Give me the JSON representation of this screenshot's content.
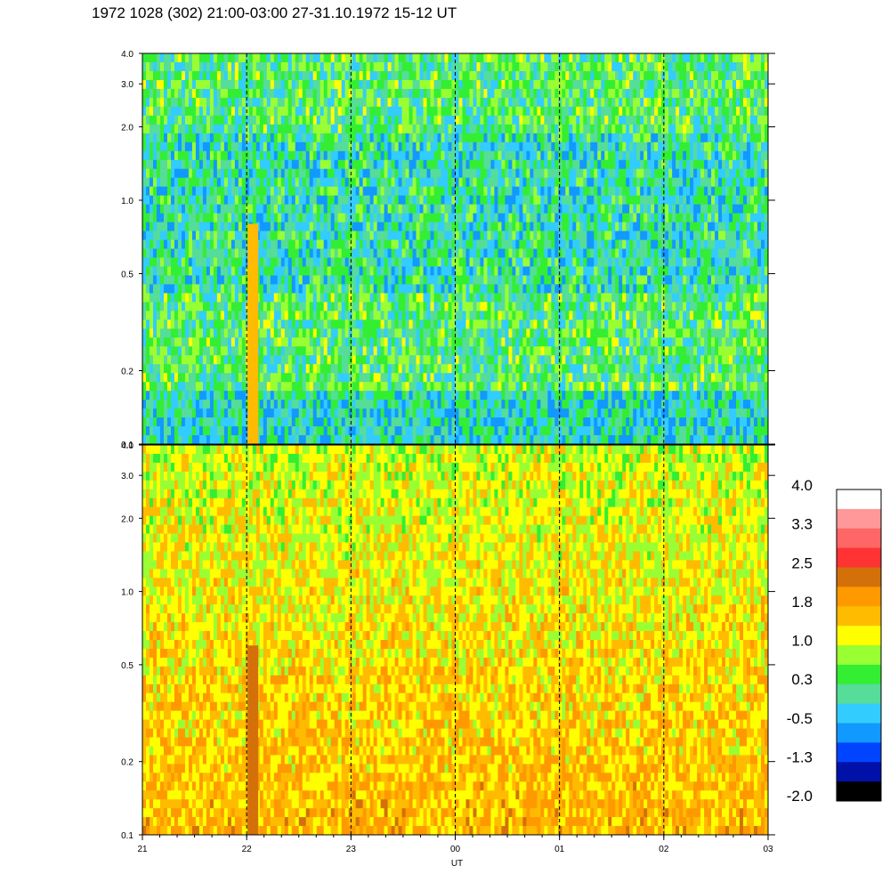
{
  "title": "1972 1028 (302) 21:00-03:00 27-31.10.1972  15-12 UT",
  "chart_data": [
    {
      "type": "heatmap",
      "panel": "upper",
      "xlabel": "",
      "ylabel": "",
      "x_range": [
        "21",
        "03"
      ],
      "y_ticks": [
        "0.1",
        "0.2",
        "0.5",
        "1.0",
        "2.0",
        "3.0",
        "4.0"
      ],
      "y_scale": "log",
      "ylim": [
        0.1,
        4.0
      ],
      "dashed_vertical_lines_at": [
        "22",
        "23",
        "00",
        "01",
        "02"
      ],
      "dominant_levels": [
        -0.5,
        0.3,
        1.0
      ],
      "highlight": {
        "x": "22",
        "level": 1.8,
        "y_range": [
          0.1,
          0.8
        ]
      }
    },
    {
      "type": "heatmap",
      "panel": "lower",
      "xlabel": "UT",
      "ylabel": "",
      "x_ticks": [
        "21",
        "22",
        "23",
        "00",
        "01",
        "02",
        "03"
      ],
      "y_ticks": [
        "0.1",
        "0.2",
        "0.5",
        "1.0",
        "2.0",
        "3.0",
        "4.0"
      ],
      "y_scale": "log",
      "ylim": [
        0.1,
        4.0
      ],
      "dashed_vertical_lines_at": [
        "22",
        "23",
        "00",
        "01",
        "02"
      ],
      "dominant_levels": [
        1.0,
        1.8
      ],
      "highlight": {
        "x": "22",
        "level": 2.5,
        "y_range": [
          0.1,
          0.6
        ]
      }
    }
  ],
  "colorbar": {
    "labels": [
      "4.0",
      "3.3",
      "2.5",
      "1.8",
      "1.0",
      "0.3",
      "-0.5",
      "-1.3",
      "-2.0"
    ],
    "colors": [
      "#ffffff",
      "#ff9999",
      "#ff6666",
      "#ff3333",
      "#d4700a",
      "#ff9900",
      "#ffbb00",
      "#ffff00",
      "#99ff33",
      "#33ee33",
      "#55dd99",
      "#33ccff",
      "#1199ff",
      "#0044ff",
      "#0011aa",
      "#000000"
    ]
  }
}
